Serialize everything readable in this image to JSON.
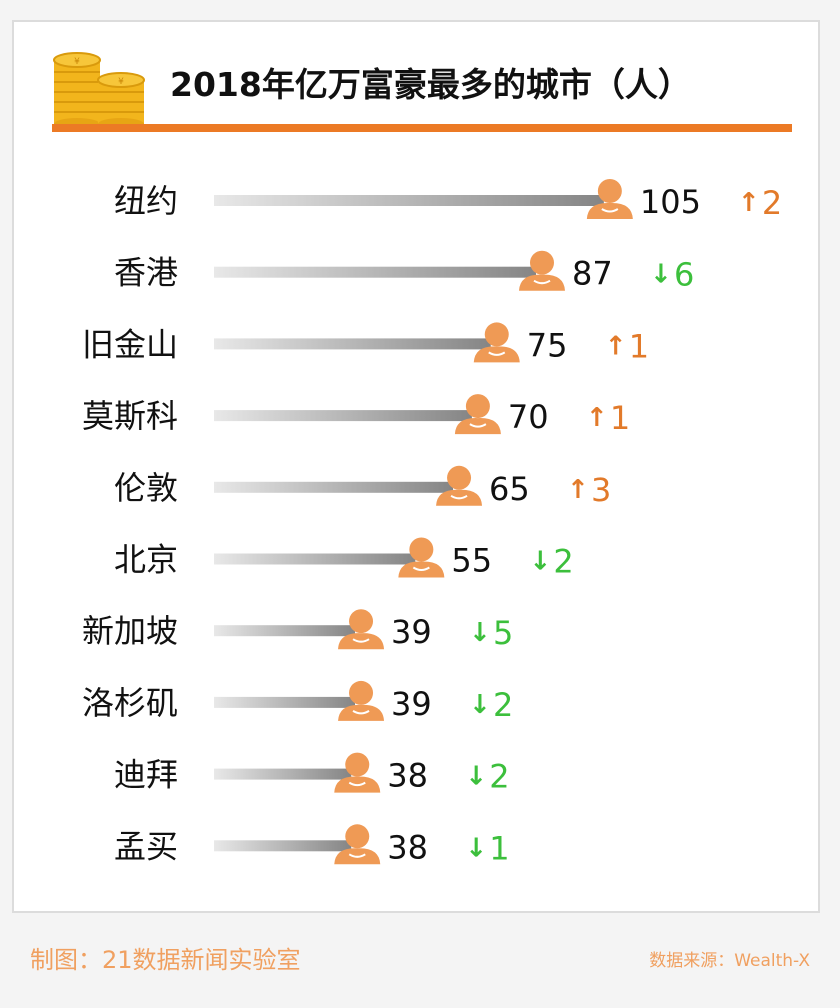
{
  "title": "2018年亿万富豪最多的城市（人）",
  "footer": {
    "credit": "制图：21数据新闻实验室",
    "source": "数据来源：Wealth-X"
  },
  "colors": {
    "accent": "#ec7a25",
    "person": "#ef9a55",
    "up": "#e27a2a",
    "down": "#3cbf3c",
    "bar_dark": "#8a8a8a",
    "bar_light": "#e6e6e6"
  },
  "icons": [
    "coin-stack-icon",
    "person-icon",
    "arrow-up-icon",
    "arrow-down-icon"
  ],
  "chart_data": {
    "type": "bar",
    "orientation": "horizontal",
    "categories": [
      "纽约",
      "香港",
      "旧金山",
      "莫斯科",
      "伦敦",
      "北京",
      "新加坡",
      "洛杉矶",
      "迪拜",
      "孟买"
    ],
    "values": [
      105,
      87,
      75,
      70,
      65,
      55,
      39,
      39,
      38,
      38
    ],
    "changes": [
      {
        "direction": "up",
        "arrow": "↑",
        "value": "2"
      },
      {
        "direction": "down",
        "arrow": "↓",
        "value": "6"
      },
      {
        "direction": "up",
        "arrow": "↑",
        "value": "1"
      },
      {
        "direction": "up",
        "arrow": "↑",
        "value": "1"
      },
      {
        "direction": "up",
        "arrow": "↑",
        "value": "3"
      },
      {
        "direction": "down",
        "arrow": "↓",
        "value": "2"
      },
      {
        "direction": "down",
        "arrow": "↓",
        "value": "5"
      },
      {
        "direction": "down",
        "arrow": "↓",
        "value": "2"
      },
      {
        "direction": "down",
        "arrow": "↓",
        "value": "2"
      },
      {
        "direction": "down",
        "arrow": "↓",
        "value": "1"
      }
    ],
    "title": "2018年亿万富豪最多的城市（人）",
    "xlabel": "",
    "ylabel": ""
  }
}
